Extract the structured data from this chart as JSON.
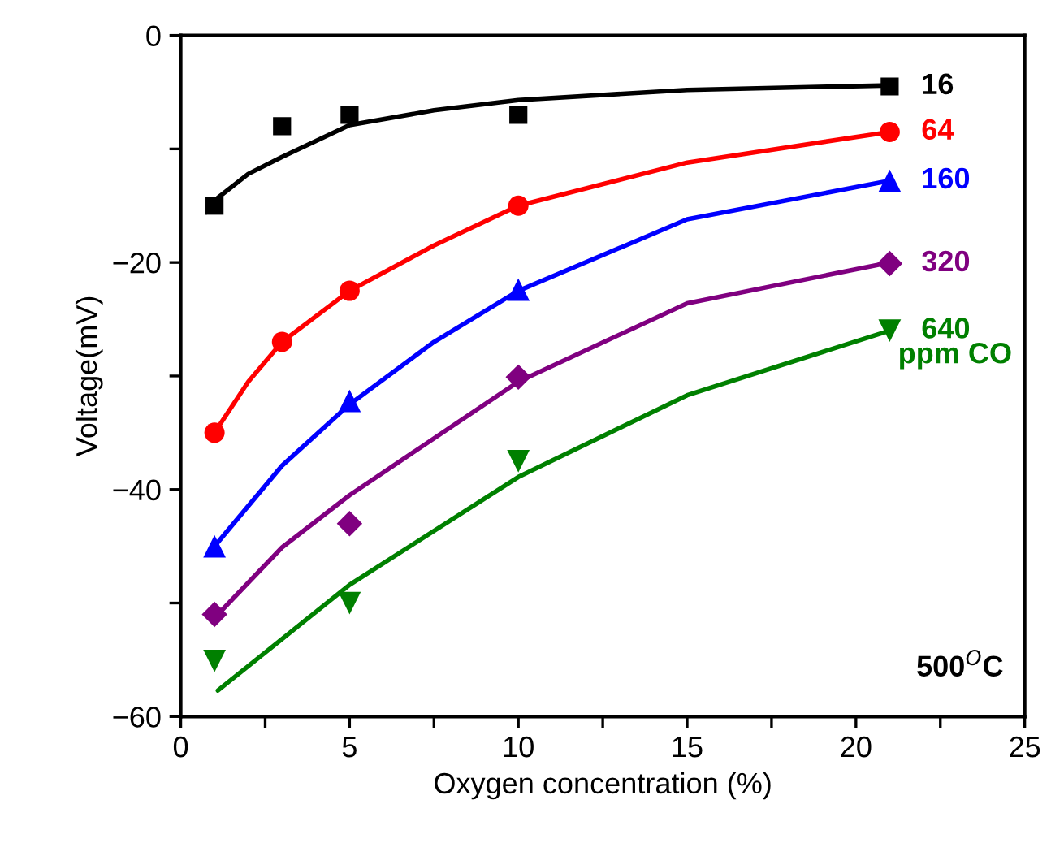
{
  "chart_data": {
    "type": "scatter",
    "xlabel": "Oxygen concentration (%)",
    "ylabel": "Voltage(mV)",
    "xlim": [
      0,
      25
    ],
    "ylim": [
      -60,
      0
    ],
    "xticks": [
      0,
      {
        "value": 2.5,
        "label": null
      },
      5,
      {
        "value": 7.5,
        "label": null
      },
      10,
      {
        "value": 12.5,
        "label": null
      },
      15,
      {
        "value": 17.5,
        "label": null
      },
      20,
      {
        "value": 22.5,
        "label": null
      },
      25
    ],
    "yticks": [
      -60,
      {
        "value": -50,
        "label": null
      },
      -40,
      {
        "value": -30,
        "label": null
      },
      -20,
      {
        "value": -10,
        "label": null
      },
      0
    ],
    "grid": false,
    "legend": false,
    "series": [
      {
        "type": "line",
        "color": "#000000",
        "x": [
          1.1,
          2,
          3,
          5,
          7.5,
          10,
          15,
          21
        ],
        "values": [
          -14.3,
          -12.2,
          -10.7,
          -7.9,
          -6.6,
          -5.7,
          -4.8,
          -4.4
        ],
        "marker": "none"
      },
      {
        "type": "line",
        "color": "#ff0000",
        "x": [
          1,
          2,
          3,
          5,
          7.5,
          10,
          15,
          21
        ],
        "values": [
          -35,
          -30.5,
          -27,
          -22.5,
          -18.5,
          -15,
          -11.2,
          -8.5
        ],
        "marker": "none"
      },
      {
        "type": "line",
        "color": "#0000ff",
        "x": [
          1,
          3,
          5,
          7.5,
          10,
          15,
          21
        ],
        "values": [
          -45,
          -37.9,
          -32.5,
          -27,
          -22.5,
          -16.2,
          -12.8
        ],
        "marker": "none"
      },
      {
        "type": "line",
        "color": "#800080",
        "x": [
          1.1,
          3,
          5,
          10,
          15,
          21
        ],
        "values": [
          -51,
          -45.1,
          -40.5,
          -30.5,
          -23.6,
          -20
        ],
        "marker": "none"
      },
      {
        "type": "line",
        "color": "#008000",
        "x": [
          1.1,
          5,
          10,
          15,
          21
        ],
        "values": [
          -57.7,
          -48.4,
          -38.9,
          -31.7,
          -26
        ],
        "marker": "none"
      },
      {
        "name": "16",
        "color": "#000000",
        "x": [
          1,
          3,
          5,
          10,
          21
        ],
        "values": [
          -15,
          -8,
          -7,
          -7,
          -4.5
        ],
        "marker": "square"
      },
      {
        "name": "64",
        "color": "#ff0000",
        "x": [
          1,
          3,
          5,
          10,
          21
        ],
        "values": [
          -35,
          -27,
          -22.5,
          -15,
          -8.5
        ],
        "marker": "circle"
      },
      {
        "name": "160",
        "color": "#0000ff",
        "x": [
          1,
          5,
          10,
          21
        ],
        "values": [
          -45,
          -32.2,
          -22.4,
          -12.8
        ],
        "marker": "triangle"
      },
      {
        "name": "320",
        "color": "#800080",
        "x": [
          1,
          5,
          10,
          21
        ],
        "values": [
          -51,
          -43,
          -30.1,
          -20.1
        ],
        "marker": "diamond"
      },
      {
        "name": "640",
        "color": "#008000",
        "x": [
          1,
          5,
          10,
          21
        ],
        "values": [
          -55.1,
          -50,
          -37.5,
          -26
        ],
        "marker": "triangle_down"
      }
    ],
    "annotations": [
      "ppm CO",
      "500$^{O}$C"
    ]
  }
}
